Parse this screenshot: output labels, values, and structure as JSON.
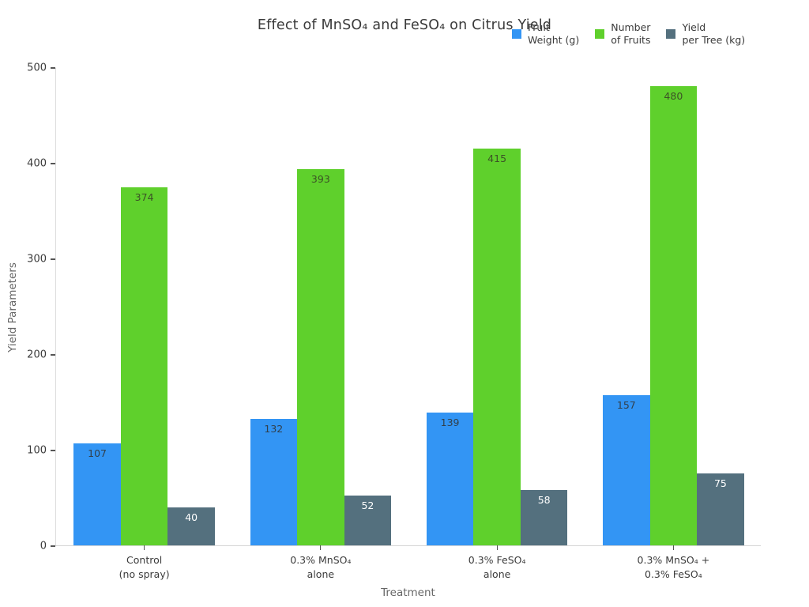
{
  "chart_data": {
    "type": "bar",
    "title": "Effect of MnSO₄ and FeSO₄ on Citrus Yield",
    "xlabel": "Treatment",
    "ylabel": "Yield Parameters",
    "ylim": [
      0,
      500
    ],
    "yticks": [
      0,
      100,
      200,
      300,
      400,
      500
    ],
    "grid": false,
    "legend_position": "top-right",
    "background_color": "#ffffff",
    "spine_color": "#d5d5d5",
    "categories": [
      "Control\n(no spray)",
      "0.3% MnSO₄\nalone",
      "0.3% FeSO₄\nalone",
      "0.3% MnSO₄ +\n0.3% FeSO₄"
    ],
    "series": [
      {
        "name": "Fruit\nWeight (g)",
        "color": "#3395f4",
        "label_color": "#31404d",
        "values": [
          107,
          132,
          139,
          157
        ]
      },
      {
        "name": "Number\nof Fruits",
        "color": "#5fd02c",
        "label_color": "#3c5226",
        "values": [
          374,
          393,
          415,
          480
        ]
      },
      {
        "name": "Yield\nper Tree (kg)",
        "color": "#54707e",
        "label_color": "#ffffff",
        "values": [
          40,
          52,
          58,
          75
        ]
      }
    ]
  }
}
